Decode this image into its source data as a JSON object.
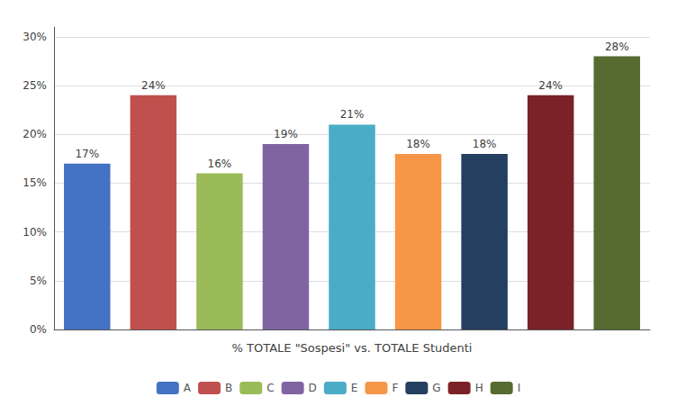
{
  "chart_data": {
    "type": "bar",
    "xlabel": "% TOTALE \"Sospesi\" vs. TOTALE Studenti",
    "categories": [
      "A",
      "B",
      "C",
      "D",
      "E",
      "F",
      "G",
      "H",
      "I"
    ],
    "values": [
      0.17,
      0.24,
      0.16,
      0.19,
      0.21,
      0.18,
      0.18,
      0.24,
      0.28
    ],
    "value_labels": [
      "17%",
      "24%",
      "16%",
      "19%",
      "21%",
      "18%",
      "18%",
      "24%",
      "28%"
    ],
    "colors": [
      "#4472C4",
      "#C0504D",
      "#9BBB59",
      "#8064A2",
      "#4BACC6",
      "#F79646",
      "#243F60",
      "#7B2227",
      "#556B2F"
    ],
    "ylim": [
      0,
      0.31
    ],
    "yticks": [
      {
        "value": 0.0,
        "label": "0%"
      },
      {
        "value": 0.05,
        "label": "5%"
      },
      {
        "value": 0.1,
        "label": "10%"
      },
      {
        "value": 0.15,
        "label": "15%"
      },
      {
        "value": 0.2,
        "label": "20%"
      },
      {
        "value": 0.25,
        "label": "25%"
      },
      {
        "value": 0.3,
        "label": "30%"
      }
    ],
    "grid": true,
    "legend": "bottom",
    "data_labels": true,
    "tick_labels": "y"
  }
}
